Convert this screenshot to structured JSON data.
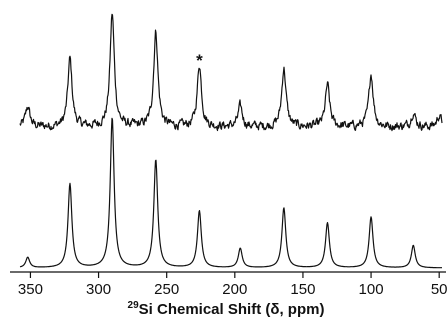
{
  "chart_data": {
    "type": "line",
    "xlabel_sup": "29",
    "xlabel_main": "Si Chemical Shift (",
    "xlabel_delta": "δ",
    "xlabel_end": ", ppm)",
    "xlim": [
      365,
      45
    ],
    "x_ticks": [
      "350",
      "300",
      "250",
      "200",
      "150",
      "100",
      "50"
    ],
    "x_tick_values": [
      350,
      300,
      250,
      200,
      150,
      100,
      50
    ],
    "annotation": {
      "text": "*",
      "x": 226
    },
    "series": [
      {
        "role": "experimental",
        "noise_level": 0.07,
        "baseline": 0.0,
        "peaks": [
          {
            "x": 352,
            "height": 0.18
          },
          {
            "x": 321,
            "height": 0.6
          },
          {
            "x": 290,
            "height": 1.0
          },
          {
            "x": 258,
            "height": 0.84
          },
          {
            "x": 226,
            "height": 0.55
          },
          {
            "x": 196,
            "height": 0.18
          },
          {
            "x": 164,
            "height": 0.52
          },
          {
            "x": 132,
            "height": 0.37
          },
          {
            "x": 100,
            "height": 0.47
          },
          {
            "x": 69,
            "height": 0.13
          },
          {
            "x": 50,
            "height": 0.1
          }
        ]
      },
      {
        "role": "simulated",
        "noise_level": 0.0,
        "baseline": 0.0,
        "peaks": [
          {
            "x": 352,
            "height": 0.07
          },
          {
            "x": 321,
            "height": 0.56
          },
          {
            "x": 290,
            "height": 1.0
          },
          {
            "x": 258,
            "height": 0.72
          },
          {
            "x": 226,
            "height": 0.38
          },
          {
            "x": 196,
            "height": 0.13
          },
          {
            "x": 164,
            "height": 0.4
          },
          {
            "x": 132,
            "height": 0.3
          },
          {
            "x": 100,
            "height": 0.34
          },
          {
            "x": 69,
            "height": 0.15
          }
        ]
      }
    ]
  }
}
